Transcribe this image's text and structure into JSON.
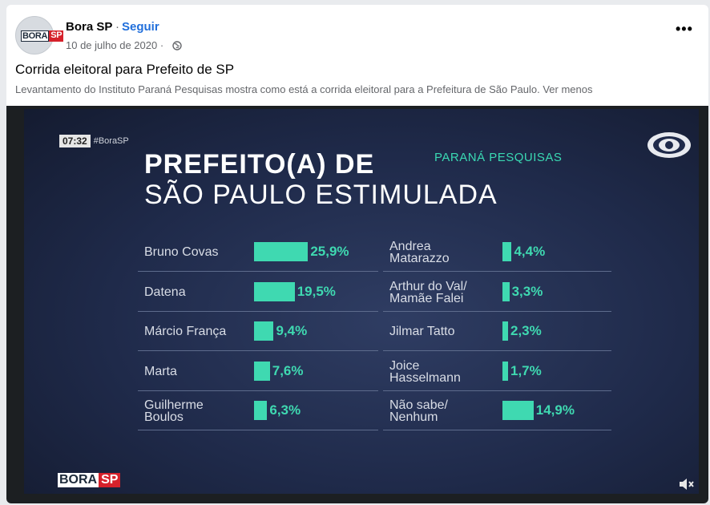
{
  "post": {
    "page_name": "Bora SP",
    "separator": "·",
    "follow_label": "Seguir",
    "date": "10 de julho de 2020 ·",
    "title": "Corrida eleitoral para Prefeito de SP",
    "text": "Levantamento do Instituto Paraná Pesquisas mostra como está a corrida eleitoral para a Prefeitura de São Paulo.",
    "more_link": "Ver menos",
    "avatar_logo": {
      "bora": "BORA",
      "sp": "SP"
    },
    "icons": {
      "privacy": "globe-icon",
      "options": "more-options-icon"
    }
  },
  "video": {
    "time": "07:32",
    "hashtag": "#BoraSP",
    "title_line1": "PREFEITO(A) DE",
    "title_line2": "SÃO PAULO ESTIMULADA",
    "source": "PARANÁ PESQUISAS",
    "logo": {
      "bora": "BORA",
      "sp": "SP"
    },
    "colors": {
      "bar": "#3fd9b1",
      "background": "#1f2a4a",
      "accent_red": "#d6212b"
    },
    "icons": {
      "channel": "band-eye-logo-icon",
      "sound": "mute-icon"
    }
  },
  "chart_data": {
    "type": "bar",
    "title": "PREFEITO(A) DE SÃO PAULO ESTIMULADA",
    "left_column": [
      {
        "name": [
          "Bruno Covas"
        ],
        "value": 25.9,
        "label": "25,9%"
      },
      {
        "name": [
          "Datena"
        ],
        "value": 19.5,
        "label": "19,5%"
      },
      {
        "name": [
          "Márcio França"
        ],
        "value": 9.4,
        "label": "9,4%"
      },
      {
        "name": [
          "Marta"
        ],
        "value": 7.6,
        "label": "7,6%"
      },
      {
        "name": [
          "Guilherme",
          "Boulos"
        ],
        "value": 6.3,
        "label": "6,3%"
      }
    ],
    "right_column": [
      {
        "name": [
          "Andrea",
          "Matarazzo"
        ],
        "value": 4.4,
        "label": "4,4%"
      },
      {
        "name": [
          "Arthur do Val/",
          "Mamãe Falei"
        ],
        "value": 3.3,
        "label": "3,3%"
      },
      {
        "name": [
          "Jilmar Tatto"
        ],
        "value": 2.3,
        "label": "2,3%"
      },
      {
        "name": [
          "Joice",
          "Hasselmann"
        ],
        "value": 1.7,
        "label": "1,7%"
      },
      {
        "name": [
          "Não sabe/",
          "Nenhum"
        ],
        "value": 14.9,
        "label": "14,9%"
      }
    ]
  }
}
